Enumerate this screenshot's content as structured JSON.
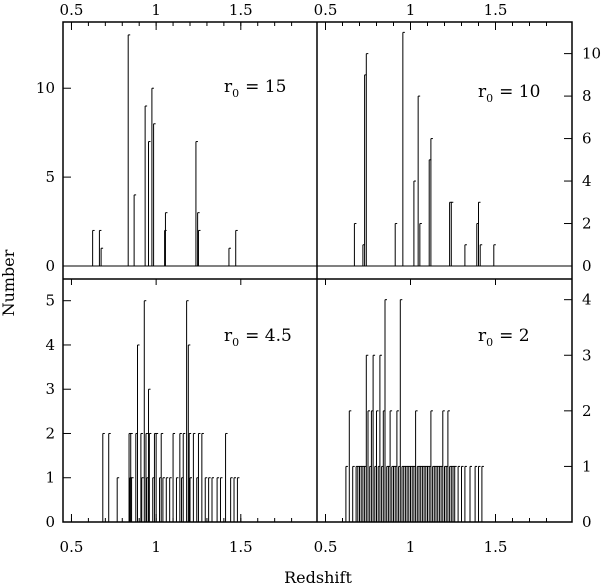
{
  "chart_data": {
    "type": "bar",
    "xlabel": "Redshift",
    "ylabel": "Number",
    "x_ticks": [
      0.5,
      1,
      1.5
    ],
    "x_tick_labels": [
      "0.5",
      "1",
      "1.5"
    ],
    "panels": [
      {
        "id": "top-left",
        "label_main": "r",
        "label_sub": "0",
        "label_value": "= 15",
        "xlim": [
          0.45,
          1.95
        ],
        "ylim": [
          0,
          13.5
        ],
        "y_ticks": [
          0,
          5,
          10
        ],
        "y_tick_labels": [
          "0",
          "5",
          "10"
        ],
        "x": [
          0.625,
          0.665,
          0.675,
          0.835,
          0.87,
          0.935,
          0.955,
          0.975,
          0.985,
          1.05,
          1.055,
          1.235,
          1.245,
          1.25,
          1.43,
          1.47
        ],
        "values": [
          2,
          2,
          1,
          13,
          4,
          9,
          7,
          10,
          8,
          2,
          3,
          7,
          3,
          2,
          1,
          2
        ]
      },
      {
        "id": "top-right",
        "label_main": "r",
        "label_sub": "0",
        "label_value": "= 10",
        "xlim": [
          0.45,
          1.95
        ],
        "ylim": [
          0,
          11.3
        ],
        "y_ticks": [
          0,
          2,
          4,
          6,
          8,
          10
        ],
        "y_tick_labels": [
          "0",
          "2",
          "4",
          "6",
          "8",
          "10"
        ],
        "x": [
          0.67,
          0.72,
          0.73,
          0.74,
          0.91,
          0.955,
          1.02,
          1.045,
          1.055,
          1.11,
          1.12,
          1.23,
          1.24,
          1.32,
          1.39,
          1.4,
          1.41,
          1.49
        ],
        "values": [
          2,
          1,
          9,
          10,
          2,
          11,
          4,
          8,
          2,
          5,
          6,
          3,
          3,
          1,
          2,
          3,
          1,
          1
        ]
      },
      {
        "id": "bottom-left",
        "label_main": "r",
        "label_sub": "0",
        "label_value": "= 4.5",
        "xlim": [
          0.45,
          1.95
        ],
        "ylim": [
          0,
          5.4
        ],
        "y_ticks": [
          0,
          1,
          2,
          3,
          4,
          5
        ],
        "y_tick_labels": [
          "0",
          "1",
          "2",
          "3",
          "4",
          "5"
        ],
        "x": [
          0.685,
          0.72,
          0.77,
          0.84,
          0.845,
          0.85,
          0.855,
          0.88,
          0.89,
          0.91,
          0.915,
          0.93,
          0.94,
          0.945,
          0.955,
          0.96,
          0.98,
          0.99,
          1.0,
          1.02,
          1.03,
          1.04,
          1.06,
          1.08,
          1.1,
          1.12,
          1.14,
          1.15,
          1.16,
          1.18,
          1.19,
          1.195,
          1.2,
          1.22,
          1.24,
          1.25,
          1.27,
          1.29,
          1.31,
          1.33,
          1.36,
          1.38,
          1.41,
          1.44,
          1.46,
          1.48
        ],
        "values": [
          2,
          2,
          1,
          2,
          1,
          2,
          1,
          2,
          4,
          2,
          1,
          5,
          2,
          1,
          3,
          2,
          1,
          2,
          2,
          1,
          2,
          1,
          1,
          1,
          2,
          1,
          2,
          1,
          2,
          5,
          4,
          2,
          1,
          2,
          1,
          2,
          2,
          1,
          1,
          1,
          1,
          1,
          2,
          1,
          1,
          1
        ]
      },
      {
        "id": "bottom-right",
        "label_main": "r",
        "label_sub": "0",
        "label_value": "= 2",
        "xlim": [
          0.45,
          1.95
        ],
        "ylim": [
          0,
          4.3
        ],
        "y_ticks": [
          0,
          1,
          2,
          3,
          4
        ],
        "y_tick_labels": [
          "0",
          "1",
          "2",
          "3",
          "4"
        ],
        "x": [
          0.62,
          0.64,
          0.66,
          0.68,
          0.69,
          0.7,
          0.71,
          0.72,
          0.73,
          0.74,
          0.75,
          0.76,
          0.77,
          0.78,
          0.79,
          0.8,
          0.81,
          0.82,
          0.83,
          0.84,
          0.85,
          0.86,
          0.87,
          0.88,
          0.89,
          0.9,
          0.91,
          0.92,
          0.93,
          0.94,
          0.95,
          0.96,
          0.97,
          0.98,
          0.99,
          1.0,
          1.01,
          1.02,
          1.03,
          1.04,
          1.05,
          1.06,
          1.07,
          1.08,
          1.09,
          1.1,
          1.11,
          1.12,
          1.13,
          1.14,
          1.15,
          1.16,
          1.17,
          1.18,
          1.19,
          1.2,
          1.21,
          1.22,
          1.23,
          1.24,
          1.25,
          1.26,
          1.28,
          1.3,
          1.32,
          1.35,
          1.38,
          1.4,
          1.42
        ],
        "values": [
          1,
          2,
          1,
          1,
          1,
          1,
          1,
          1,
          1,
          3,
          2,
          1,
          2,
          3,
          1,
          2,
          1,
          3,
          1,
          2,
          4,
          1,
          1,
          2,
          1,
          1,
          1,
          2,
          1,
          4,
          1,
          1,
          1,
          1,
          1,
          1,
          1,
          1,
          2,
          1,
          1,
          1,
          1,
          1,
          1,
          1,
          1,
          2,
          1,
          1,
          1,
          1,
          1,
          1,
          2,
          1,
          1,
          2,
          1,
          1,
          1,
          1,
          1,
          1,
          1,
          1,
          1,
          1,
          1
        ]
      }
    ]
  }
}
